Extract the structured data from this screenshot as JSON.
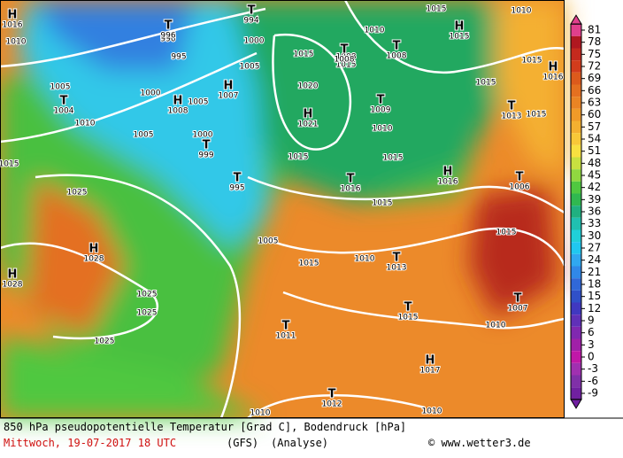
{
  "map": {
    "isobar_labels": [
      "1010",
      "1005",
      "1010",
      "1005",
      "1000",
      "995",
      "1000",
      "1005",
      "1000",
      "1005",
      "1015",
      "1025",
      "1025",
      "1025",
      "1025",
      "1015",
      "1020",
      "1015",
      "1010",
      "1015",
      "1010",
      "1015",
      "1010",
      "1015",
      "1015",
      "1015",
      "1015",
      "1015",
      "1005",
      "1010",
      "1015",
      "1010",
      "1010",
      "1010",
      "1015",
      "1010",
      "1008",
      "990"
    ],
    "markers": [
      {
        "symbol": "H",
        "pressure": "1016"
      },
      {
        "symbol": "T",
        "pressure": "994"
      },
      {
        "symbol": "T",
        "pressure": "996"
      },
      {
        "symbol": "H",
        "pressure": "1007"
      },
      {
        "symbol": "H",
        "pressure": "1008"
      },
      {
        "symbol": "T",
        "pressure": "1004"
      },
      {
        "symbol": "T",
        "pressure": "999"
      },
      {
        "symbol": "T",
        "pressure": "995"
      },
      {
        "symbol": "H",
        "pressure": "1028"
      },
      {
        "symbol": "H",
        "pressure": "1028"
      },
      {
        "symbol": "H",
        "pressure": "1021"
      },
      {
        "symbol": "T",
        "pressure": "1008"
      },
      {
        "symbol": "T",
        "pressure": "1008"
      },
      {
        "symbol": "H",
        "pressure": "1015"
      },
      {
        "symbol": "H",
        "pressure": "1016"
      },
      {
        "symbol": "T",
        "pressure": "1009"
      },
      {
        "symbol": "T",
        "pressure": "1013"
      },
      {
        "symbol": "T",
        "pressure": "1016"
      },
      {
        "symbol": "H",
        "pressure": "1016"
      },
      {
        "symbol": "T",
        "pressure": "1006"
      },
      {
        "symbol": "T",
        "pressure": "1013"
      },
      {
        "symbol": "T",
        "pressure": "1007"
      },
      {
        "symbol": "T",
        "pressure": "1015"
      },
      {
        "symbol": "T",
        "pressure": "1011"
      },
      {
        "symbol": "H",
        "pressure": "1017"
      },
      {
        "symbol": "T",
        "pressure": "1012"
      }
    ],
    "colorbar": {
      "ticks": [
        81,
        78,
        75,
        72,
        69,
        66,
        63,
        60,
        57,
        54,
        51,
        48,
        45,
        42,
        39,
        36,
        33,
        30,
        27,
        24,
        21,
        18,
        15,
        12,
        9,
        6,
        3,
        0,
        -3,
        -6,
        -9
      ],
      "colors": [
        "#e0408c",
        "#b01820",
        "#c42a1e",
        "#d23c1c",
        "#dc5a1c",
        "#e47020",
        "#ea8424",
        "#f09a28",
        "#f4b030",
        "#f8c838",
        "#f8e040",
        "#c8e040",
        "#90d840",
        "#50c840",
        "#30b850",
        "#20b080",
        "#20c0b0",
        "#20d0d8",
        "#20c8f0",
        "#30a8f0",
        "#3088e8",
        "#3068d8",
        "#3050c8",
        "#4038c0",
        "#6030b8",
        "#8028b0",
        "#a020a8",
        "#c018a8",
        "#a030b0",
        "#8030a8",
        "#7020a0"
      ]
    },
    "footer": {
      "title": "850 hPa pseudopotentielle Temperatur [Grad C], Bodendruck [hPa]",
      "date": "Mittwoch, 19-07-2017  18 UTC",
      "model": "(GFS)",
      "run": "(Analyse)",
      "credit": "© www.wetter3.de"
    }
  }
}
